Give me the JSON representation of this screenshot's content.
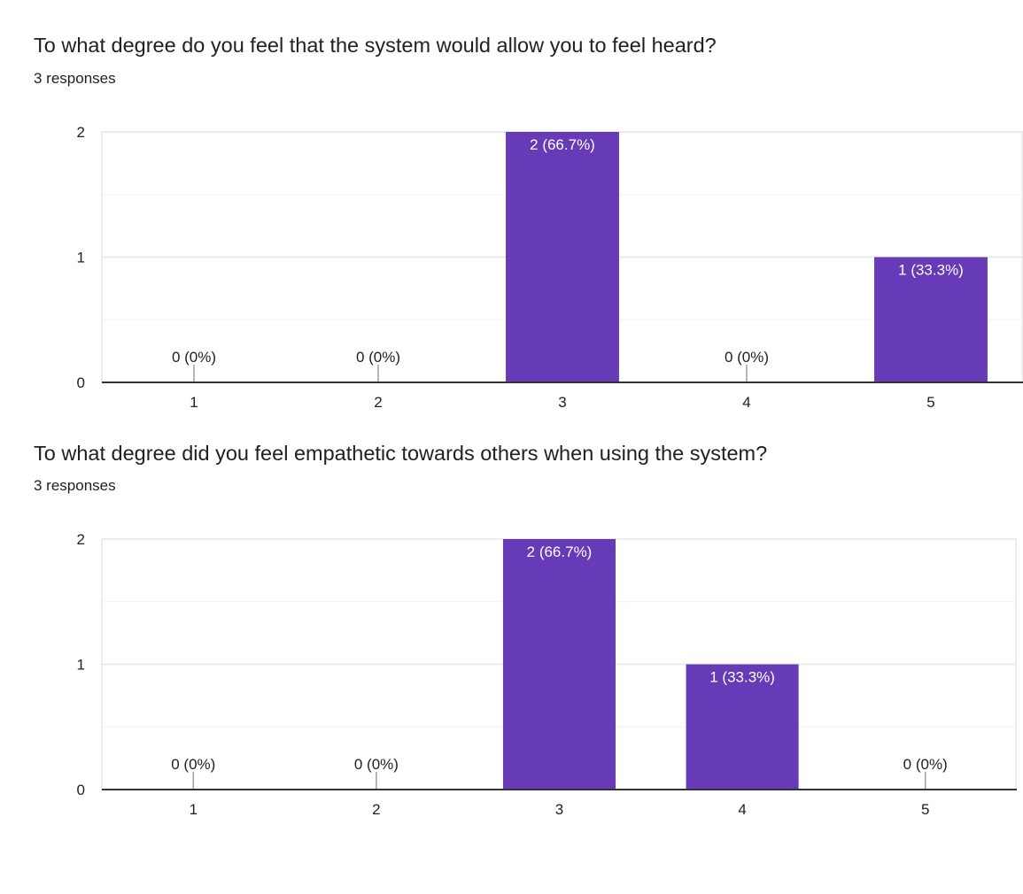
{
  "colors": {
    "bar": "#673ab7",
    "grid_major": "#e6e6e6",
    "grid_minor": "#f3f3f3",
    "axis": "#333333",
    "text": "#202124",
    "bar_label": "#ffffff"
  },
  "questions": [
    {
      "title": "To what degree do you feel that the system would allow you to feel heard?",
      "responses": "3 responses"
    },
    {
      "title": "To what degree did you feel empathetic towards others when using the system?",
      "responses": "3 responses"
    }
  ],
  "chart_data": [
    {
      "type": "bar",
      "categories": [
        "1",
        "2",
        "3",
        "4",
        "5"
      ],
      "values": [
        0,
        0,
        2,
        0,
        1
      ],
      "data_labels": [
        "0 (0%)",
        "0 (0%)",
        "2 (66.7%)",
        "0 (0%)",
        "1 (33.3%)"
      ],
      "y_ticks": [
        "0",
        "1",
        "2"
      ],
      "ylim": [
        0,
        2
      ],
      "title": "To what degree do you feel that the system would allow you to feel heard?",
      "xlabel": "",
      "ylabel": "",
      "grid": true,
      "legend": "none"
    },
    {
      "type": "bar",
      "categories": [
        "1",
        "2",
        "3",
        "4",
        "5"
      ],
      "values": [
        0,
        0,
        2,
        1,
        0
      ],
      "data_labels": [
        "0 (0%)",
        "0 (0%)",
        "2 (66.7%)",
        "1 (33.3%)",
        "0 (0%)"
      ],
      "y_ticks": [
        "0",
        "1",
        "2"
      ],
      "ylim": [
        0,
        2
      ],
      "title": "To what degree did you feel empathetic towards others when using the system?",
      "xlabel": "",
      "ylabel": "",
      "grid": true,
      "legend": "none"
    }
  ]
}
